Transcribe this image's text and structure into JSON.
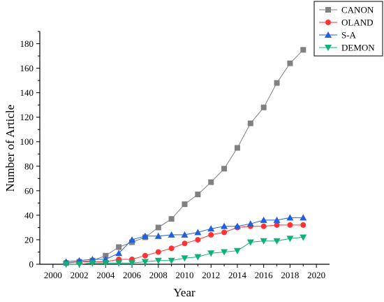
{
  "chart_data": {
    "type": "line",
    "title": "",
    "xlabel": "Year",
    "ylabel": "Number of Article",
    "xlim": [
      1999,
      2021
    ],
    "ylim": [
      0,
      190
    ],
    "xticks": [
      2000,
      2002,
      2004,
      2006,
      2008,
      2010,
      2012,
      2014,
      2016,
      2018,
      2020
    ],
    "yticks": [
      0,
      20,
      40,
      60,
      80,
      100,
      120,
      140,
      160,
      180
    ],
    "grid": false,
    "legend": "top-right",
    "series": [
      {
        "name": "CANON",
        "color": "#808080",
        "marker": "square",
        "x": [
          2001,
          2002,
          2003,
          2004,
          2005,
          2006,
          2007,
          2008,
          2009,
          2010,
          2011,
          2012,
          2013,
          2014,
          2015,
          2016,
          2017,
          2018,
          2019
        ],
        "values": [
          1,
          2,
          3,
          7,
          14,
          18,
          22,
          30,
          37,
          49,
          57,
          67,
          78,
          95,
          115,
          128,
          148,
          164,
          175
        ]
      },
      {
        "name": "OLAND",
        "color": "#ff3333",
        "marker": "circle",
        "x": [
          2001,
          2002,
          2003,
          2004,
          2005,
          2006,
          2007,
          2008,
          2009,
          2010,
          2011,
          2012,
          2013,
          2014,
          2015,
          2016,
          2017,
          2018,
          2019
        ],
        "values": [
          1,
          2,
          2,
          2,
          4,
          4,
          7,
          10,
          13,
          17,
          20,
          24,
          26,
          30,
          31,
          31,
          32,
          32,
          32
        ]
      },
      {
        "name": "S-A",
        "color": "#1f5fe0",
        "marker": "triangle-up",
        "x": [
          2001,
          2002,
          2003,
          2004,
          2005,
          2006,
          2007,
          2008,
          2009,
          2010,
          2011,
          2012,
          2013,
          2014,
          2015,
          2016,
          2017,
          2018,
          2019
        ],
        "values": [
          2,
          3,
          4,
          4,
          9,
          20,
          23,
          23,
          24,
          24,
          26,
          29,
          31,
          31,
          33,
          36,
          36,
          38,
          38
        ]
      },
      {
        "name": "DEMON",
        "color": "#11b07a",
        "marker": "triangle-down",
        "x": [
          2001,
          2002,
          2003,
          2004,
          2005,
          2006,
          2007,
          2008,
          2009,
          2010,
          2011,
          2012,
          2013,
          2014,
          2015,
          2016,
          2017,
          2018,
          2019
        ],
        "values": [
          0,
          0,
          1,
          1,
          1,
          1,
          2,
          3,
          3,
          5,
          6,
          9,
          10,
          11,
          18,
          19,
          19,
          21,
          22
        ]
      }
    ]
  }
}
